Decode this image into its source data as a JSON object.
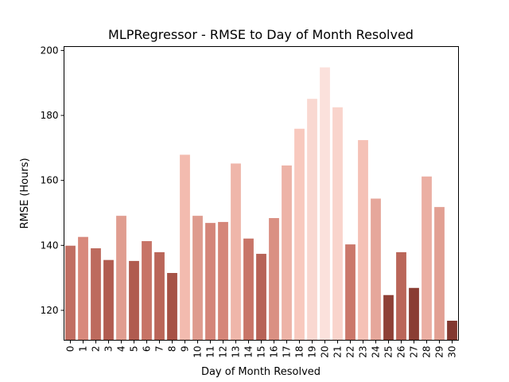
{
  "chart_data": {
    "type": "bar",
    "title": "MLPRegressor - RMSE to Day of Month Resolved",
    "xlabel": "Day of Month Resolved",
    "ylabel": "RMSE (Hours)",
    "ylim": [
      110.8,
      201.2
    ],
    "yticks": [
      120,
      140,
      160,
      180,
      200
    ],
    "grid": false,
    "categories": [
      "0",
      "1",
      "2",
      "3",
      "4",
      "5",
      "6",
      "7",
      "8",
      "9",
      "10",
      "11",
      "12",
      "13",
      "14",
      "15",
      "16",
      "17",
      "18",
      "19",
      "20",
      "21",
      "22",
      "23",
      "24",
      "25",
      "26",
      "27",
      "28",
      "29",
      "30"
    ],
    "values": [
      139.9,
      142.6,
      139.1,
      135.5,
      149.1,
      135.2,
      141.3,
      137.9,
      131.5,
      167.9,
      149.1,
      146.9,
      147.2,
      165.2,
      142.1,
      137.4,
      148.4,
      164.6,
      175.9,
      185.1,
      194.8,
      182.5,
      140.3,
      172.4,
      154.4,
      124.7,
      137.9,
      126.9,
      161.2,
      151.8,
      116.8
    ],
    "colors": [
      "#c16e62",
      "#d8897c",
      "#bd6b5e",
      "#b15c50",
      "#e09d90",
      "#b05b4f",
      "#c77467",
      "#ba6659",
      "#a65246",
      "#f3bbaf",
      "#de9b8e",
      "#d48579",
      "#d58679",
      "#efb6aa",
      "#c87568",
      "#b76357",
      "#da9083",
      "#edb3a7",
      "#f8c9be",
      "#f9d8d1",
      "#fbe1dc",
      "#f9d4cc",
      "#cb786b",
      "#f5c1b6",
      "#e6a79b",
      "#8e4036",
      "#ba6659",
      "#8a3d33",
      "#ebafa3",
      "#e2a093",
      "#823830"
    ]
  }
}
